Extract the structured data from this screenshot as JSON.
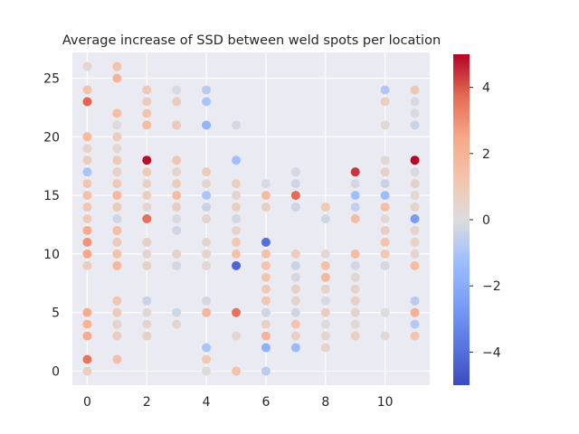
{
  "chart_data": {
    "type": "scatter",
    "title": "Average increase of SSD between weld spots per location",
    "xlabel": "",
    "ylabel": "",
    "xlim": [
      -0.5,
      11.5
    ],
    "ylim": [
      -1.2,
      27.2
    ],
    "xticks": [
      0,
      2,
      4,
      6,
      8,
      10
    ],
    "yticks": [
      0,
      5,
      10,
      15,
      20,
      25
    ],
    "grid": true,
    "colormap": "coolwarm",
    "colorbar": {
      "vmin": -5,
      "vmax": 5,
      "ticks": [
        -4,
        -2,
        0,
        2,
        4
      ]
    },
    "points": [
      {
        "x": 0,
        "y": 26,
        "c": 0.3
      },
      {
        "x": 0,
        "y": 24,
        "c": 1.3
      },
      {
        "x": 0,
        "y": 23,
        "c": 3.8
      },
      {
        "x": 0,
        "y": 20,
        "c": 1.7
      },
      {
        "x": 0,
        "y": 19,
        "c": 0.5
      },
      {
        "x": 0,
        "y": 18,
        "c": 0.8
      },
      {
        "x": 0,
        "y": 17,
        "c": -1.0
      },
      {
        "x": 0,
        "y": 16,
        "c": 1.2
      },
      {
        "x": 0,
        "y": 15,
        "c": 1.4
      },
      {
        "x": 0,
        "y": 14,
        "c": 1.1
      },
      {
        "x": 0,
        "y": 13,
        "c": 1.0
      },
      {
        "x": 0,
        "y": 12,
        "c": 2.3
      },
      {
        "x": 0,
        "y": 11,
        "c": 2.9
      },
      {
        "x": 0,
        "y": 10,
        "c": 2.5
      },
      {
        "x": 0,
        "y": 9,
        "c": 0.8
      },
      {
        "x": 0,
        "y": 5,
        "c": 2.3
      },
      {
        "x": 0,
        "y": 4,
        "c": 2.0
      },
      {
        "x": 0,
        "y": 3,
        "c": 2.3
      },
      {
        "x": 0,
        "y": 1,
        "c": 3.5
      },
      {
        "x": 0,
        "y": 0,
        "c": 0.7
      },
      {
        "x": 1,
        "y": 26,
        "c": 1.3
      },
      {
        "x": 1,
        "y": 25,
        "c": 2.0
      },
      {
        "x": 1,
        "y": 22,
        "c": 1.5
      },
      {
        "x": 1,
        "y": 21,
        "c": 0.1
      },
      {
        "x": 1,
        "y": 20,
        "c": 0.8
      },
      {
        "x": 1,
        "y": 19,
        "c": 0.3
      },
      {
        "x": 1,
        "y": 18,
        "c": 1.0
      },
      {
        "x": 1,
        "y": 17,
        "c": 0.6
      },
      {
        "x": 1,
        "y": 16,
        "c": 1.0
      },
      {
        "x": 1,
        "y": 15,
        "c": 1.8
      },
      {
        "x": 1,
        "y": 14,
        "c": 0.9
      },
      {
        "x": 1,
        "y": 13,
        "c": -0.3
      },
      {
        "x": 1,
        "y": 12,
        "c": 1.5
      },
      {
        "x": 1,
        "y": 11,
        "c": 1.0
      },
      {
        "x": 1,
        "y": 10,
        "c": 1.3
      },
      {
        "x": 1,
        "y": 9,
        "c": 1.8
      },
      {
        "x": 1,
        "y": 6,
        "c": 1.2
      },
      {
        "x": 1,
        "y": 5,
        "c": 0.9
      },
      {
        "x": 1,
        "y": 4,
        "c": 0.4
      },
      {
        "x": 1,
        "y": 3,
        "c": 0.8
      },
      {
        "x": 1,
        "y": 1,
        "c": 1.5
      },
      {
        "x": 2,
        "y": 24,
        "c": 1.0
      },
      {
        "x": 2,
        "y": 23,
        "c": 0.8
      },
      {
        "x": 2,
        "y": 22,
        "c": 1.2
      },
      {
        "x": 2,
        "y": 21,
        "c": 1.6
      },
      {
        "x": 2,
        "y": 18,
        "c": 4.9
      },
      {
        "x": 2,
        "y": 17,
        "c": 0.9
      },
      {
        "x": 2,
        "y": 16,
        "c": 0.6
      },
      {
        "x": 2,
        "y": 15,
        "c": 0.8
      },
      {
        "x": 2,
        "y": 14,
        "c": 0.3
      },
      {
        "x": 2,
        "y": 13,
        "c": 3.6
      },
      {
        "x": 2,
        "y": 11,
        "c": 0.6
      },
      {
        "x": 2,
        "y": 10,
        "c": 0.4
      },
      {
        "x": 2,
        "y": 9,
        "c": 0.6
      },
      {
        "x": 2,
        "y": 6,
        "c": -0.4
      },
      {
        "x": 2,
        "y": 5,
        "c": 0.2
      },
      {
        "x": 2,
        "y": 4,
        "c": 0.4
      },
      {
        "x": 2,
        "y": 3,
        "c": 0.6
      },
      {
        "x": 3,
        "y": 24,
        "c": -0.1
      },
      {
        "x": 3,
        "y": 23,
        "c": 0.9
      },
      {
        "x": 3,
        "y": 21,
        "c": 1.0
      },
      {
        "x": 3,
        "y": 18,
        "c": 1.2
      },
      {
        "x": 3,
        "y": 17,
        "c": 0.4
      },
      {
        "x": 3,
        "y": 16,
        "c": 0.9
      },
      {
        "x": 3,
        "y": 15,
        "c": 1.6
      },
      {
        "x": 3,
        "y": 14,
        "c": 0.8
      },
      {
        "x": 3,
        "y": 13,
        "c": -0.1
      },
      {
        "x": 3,
        "y": 12,
        "c": -0.3
      },
      {
        "x": 3,
        "y": 10,
        "c": 0.6
      },
      {
        "x": 3,
        "y": 9,
        "c": -0.2
      },
      {
        "x": 3,
        "y": 5,
        "c": -0.3
      },
      {
        "x": 3,
        "y": 4,
        "c": 0.4
      },
      {
        "x": 4,
        "y": 24,
        "c": -0.7
      },
      {
        "x": 4,
        "y": 23,
        "c": -1.0
      },
      {
        "x": 4,
        "y": 21,
        "c": -1.6
      },
      {
        "x": 4,
        "y": 17,
        "c": 0.9
      },
      {
        "x": 4,
        "y": 16,
        "c": 0.3
      },
      {
        "x": 4,
        "y": 15,
        "c": -1.0
      },
      {
        "x": 4,
        "y": 14,
        "c": -0.4
      },
      {
        "x": 4,
        "y": 13,
        "c": 0.4
      },
      {
        "x": 4,
        "y": 11,
        "c": 0.3
      },
      {
        "x": 4,
        "y": 10,
        "c": 0.5
      },
      {
        "x": 4,
        "y": 9,
        "c": 0.2
      },
      {
        "x": 4,
        "y": 6,
        "c": -0.2
      },
      {
        "x": 4,
        "y": 5,
        "c": 1.8
      },
      {
        "x": 4,
        "y": 2,
        "c": -1.0
      },
      {
        "x": 4,
        "y": 1,
        "c": 1.0
      },
      {
        "x": 4,
        "y": 0,
        "c": 0.1
      },
      {
        "x": 5,
        "y": 21,
        "c": -0.2
      },
      {
        "x": 5,
        "y": 18,
        "c": -1.2
      },
      {
        "x": 5,
        "y": 16,
        "c": 0.7
      },
      {
        "x": 5,
        "y": 15,
        "c": 0.3
      },
      {
        "x": 5,
        "y": 14,
        "c": 0.7
      },
      {
        "x": 5,
        "y": 13,
        "c": -0.2
      },
      {
        "x": 5,
        "y": 12,
        "c": 0.5
      },
      {
        "x": 5,
        "y": 11,
        "c": 1.1
      },
      {
        "x": 5,
        "y": 10,
        "c": 1.4
      },
      {
        "x": 5,
        "y": 9,
        "c": -4.3
      },
      {
        "x": 5,
        "y": 5,
        "c": 3.6
      },
      {
        "x": 5,
        "y": 3,
        "c": 0.3
      },
      {
        "x": 5,
        "y": 0,
        "c": 1.4
      },
      {
        "x": 6,
        "y": 16,
        "c": -0.1
      },
      {
        "x": 6,
        "y": 15,
        "c": 1.6
      },
      {
        "x": 6,
        "y": 14,
        "c": 0.7
      },
      {
        "x": 6,
        "y": 11,
        "c": -4.0
      },
      {
        "x": 6,
        "y": 10,
        "c": 1.4
      },
      {
        "x": 6,
        "y": 9,
        "c": 1.2
      },
      {
        "x": 6,
        "y": 8,
        "c": 1.2
      },
      {
        "x": 6,
        "y": 7,
        "c": 1.0
      },
      {
        "x": 6,
        "y": 6,
        "c": 1.1
      },
      {
        "x": 6,
        "y": 5,
        "c": -0.3
      },
      {
        "x": 6,
        "y": 4,
        "c": 0.6
      },
      {
        "x": 6,
        "y": 3,
        "c": 2.0
      },
      {
        "x": 6,
        "y": 2,
        "c": -1.8
      },
      {
        "x": 6,
        "y": 0,
        "c": -0.7
      },
      {
        "x": 7,
        "y": 17,
        "c": -0.2
      },
      {
        "x": 7,
        "y": 16,
        "c": -0.3
      },
      {
        "x": 7,
        "y": 15,
        "c": 3.7
      },
      {
        "x": 7,
        "y": 14,
        "c": -0.3
      },
      {
        "x": 7,
        "y": 10,
        "c": 0.8
      },
      {
        "x": 7,
        "y": 9,
        "c": -0.4
      },
      {
        "x": 7,
        "y": 8,
        "c": -0.2
      },
      {
        "x": 7,
        "y": 7,
        "c": 0.6
      },
      {
        "x": 7,
        "y": 6,
        "c": 0.5
      },
      {
        "x": 7,
        "y": 5,
        "c": -0.3
      },
      {
        "x": 7,
        "y": 4,
        "c": 1.2
      },
      {
        "x": 7,
        "y": 3,
        "c": 0.7
      },
      {
        "x": 7,
        "y": 2,
        "c": -1.4
      },
      {
        "x": 8,
        "y": 14,
        "c": 1.0
      },
      {
        "x": 8,
        "y": 13,
        "c": -0.3
      },
      {
        "x": 8,
        "y": 10,
        "c": 0.2
      },
      {
        "x": 8,
        "y": 9,
        "c": 1.4
      },
      {
        "x": 8,
        "y": 8,
        "c": 1.8
      },
      {
        "x": 8,
        "y": 7,
        "c": 0.5
      },
      {
        "x": 8,
        "y": 6,
        "c": -0.1
      },
      {
        "x": 8,
        "y": 5,
        "c": 0.8
      },
      {
        "x": 8,
        "y": 4,
        "c": 0.1
      },
      {
        "x": 8,
        "y": 3,
        "c": 0.4
      },
      {
        "x": 8,
        "y": 2,
        "c": 0.5
      },
      {
        "x": 9,
        "y": 17,
        "c": 4.4
      },
      {
        "x": 9,
        "y": 16,
        "c": -0.2
      },
      {
        "x": 9,
        "y": 15,
        "c": -1.2
      },
      {
        "x": 9,
        "y": 14,
        "c": -0.5
      },
      {
        "x": 9,
        "y": 13,
        "c": 1.6
      },
      {
        "x": 9,
        "y": 10,
        "c": 1.6
      },
      {
        "x": 9,
        "y": 9,
        "c": -0.2
      },
      {
        "x": 9,
        "y": 8,
        "c": 0.3
      },
      {
        "x": 9,
        "y": 7,
        "c": 0.5
      },
      {
        "x": 9,
        "y": 6,
        "c": 0.6
      },
      {
        "x": 9,
        "y": 5,
        "c": 0.4
      },
      {
        "x": 9,
        "y": 4,
        "c": 0.2
      },
      {
        "x": 9,
        "y": 3,
        "c": 0.7
      },
      {
        "x": 10,
        "y": 24,
        "c": -0.9
      },
      {
        "x": 10,
        "y": 23,
        "c": 0.7
      },
      {
        "x": 10,
        "y": 21,
        "c": 0.2
      },
      {
        "x": 10,
        "y": 18,
        "c": 0.2
      },
      {
        "x": 10,
        "y": 17,
        "c": 0.6
      },
      {
        "x": 10,
        "y": 16,
        "c": -0.4
      },
      {
        "x": 10,
        "y": 15,
        "c": -1.3
      },
      {
        "x": 10,
        "y": 14,
        "c": 1.5
      },
      {
        "x": 10,
        "y": 13,
        "c": 0.2
      },
      {
        "x": 10,
        "y": 12,
        "c": 0.7
      },
      {
        "x": 10,
        "y": 11,
        "c": 1.3
      },
      {
        "x": 10,
        "y": 10,
        "c": 1.1
      },
      {
        "x": 10,
        "y": 9,
        "c": -0.2
      },
      {
        "x": 10,
        "y": 5,
        "c": 0.0
      },
      {
        "x": 10,
        "y": 3,
        "c": 0.2
      },
      {
        "x": 11,
        "y": 24,
        "c": 1.1
      },
      {
        "x": 11,
        "y": 23,
        "c": -0.1
      },
      {
        "x": 11,
        "y": 22,
        "c": -0.1
      },
      {
        "x": 11,
        "y": 21,
        "c": -0.4
      },
      {
        "x": 11,
        "y": 18,
        "c": 5.0
      },
      {
        "x": 11,
        "y": 17,
        "c": -0.1
      },
      {
        "x": 11,
        "y": 16,
        "c": 0.6
      },
      {
        "x": 11,
        "y": 15,
        "c": 0.2
      },
      {
        "x": 11,
        "y": 14,
        "c": 0.5
      },
      {
        "x": 11,
        "y": 13,
        "c": -2.6
      },
      {
        "x": 11,
        "y": 12,
        "c": 0.4
      },
      {
        "x": 11,
        "y": 11,
        "c": 0.5
      },
      {
        "x": 11,
        "y": 10,
        "c": 0.4
      },
      {
        "x": 11,
        "y": 9,
        "c": 1.6
      },
      {
        "x": 11,
        "y": 6,
        "c": -0.7
      },
      {
        "x": 11,
        "y": 5,
        "c": 2.1
      },
      {
        "x": 11,
        "y": 4,
        "c": -0.8
      },
      {
        "x": 11,
        "y": 3,
        "c": 1.2
      }
    ]
  }
}
